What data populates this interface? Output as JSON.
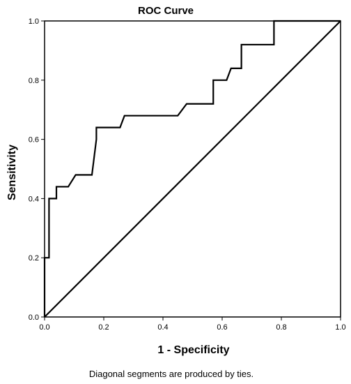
{
  "chart_data": {
    "type": "line",
    "title": "ROC Curve",
    "xlabel": "1 - Specificity",
    "ylabel": "Sensitivity",
    "xlim": [
      0,
      1
    ],
    "ylim": [
      0,
      1
    ],
    "x_ticks": [
      "0.0",
      "0.2",
      "0.4",
      "0.6",
      "0.8",
      "1.0"
    ],
    "y_ticks": [
      "0.0",
      "0.2",
      "0.4",
      "0.6",
      "0.8",
      "1.0"
    ],
    "series": [
      {
        "x": [
          0.0,
          0.0,
          0.015,
          0.015,
          0.04,
          0.04,
          0.08,
          0.105,
          0.16,
          0.175,
          0.175,
          0.255,
          0.27,
          0.45,
          0.48,
          0.57,
          0.57,
          0.615,
          0.63,
          0.665,
          0.665,
          0.775,
          0.775,
          1.0
        ],
        "y": [
          0.0,
          0.2,
          0.2,
          0.4,
          0.4,
          0.44,
          0.44,
          0.48,
          0.48,
          0.6,
          0.64,
          0.64,
          0.68,
          0.68,
          0.72,
          0.72,
          0.8,
          0.8,
          0.84,
          0.84,
          0.92,
          0.92,
          1.0,
          1.0
        ]
      },
      {
        "x": [
          0,
          1
        ],
        "y": [
          0,
          1
        ]
      }
    ],
    "grid": false,
    "legend": "none",
    "footnote": "Diagonal segments are produced by ties."
  }
}
